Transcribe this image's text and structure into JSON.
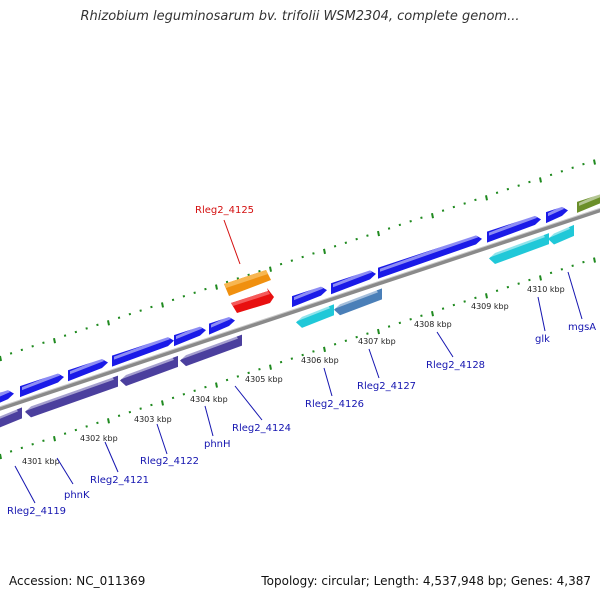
{
  "title": "Rhizobium leguminosarum bv. trifolii WSM2304, complete genom...",
  "footer": {
    "accession": "Accession: NC_011369",
    "summary": "Topology: circular; Length: 4,537,948 bp; Genes: 4,387"
  },
  "colors": {
    "backbone": "#8a8a8a",
    "tick": "#1f8a1f",
    "cds_forward": "#1a1ae8",
    "cds_reverse": "#4b3f9e",
    "highlight_orange": "#f0900f",
    "highlight_red": "#e81010",
    "cyan": "#20c8d8",
    "steelblue": "#4a7fb8",
    "olive": "#6b8f2a",
    "label_blue": "#1515b0",
    "label_red": "#d41010"
  },
  "kbp_ticks": [
    "4301 kbp",
    "4302 kbp",
    "4303 kbp",
    "4304 kbp",
    "4305 kbp",
    "4306 kbp",
    "4307 kbp",
    "4308 kbp",
    "4309 kbp",
    "4310 kbp"
  ],
  "gene_labels": [
    {
      "text": "Rleg2_4125",
      "color": "red"
    },
    {
      "text": "Rleg2_4119",
      "color": "blue"
    },
    {
      "text": "phnK",
      "color": "blue"
    },
    {
      "text": "Rleg2_4121",
      "color": "blue"
    },
    {
      "text": "Rleg2_4122",
      "color": "blue"
    },
    {
      "text": "phnH",
      "color": "blue"
    },
    {
      "text": "Rleg2_4124",
      "color": "blue"
    },
    {
      "text": "Rleg2_4126",
      "color": "blue"
    },
    {
      "text": "Rleg2_4127",
      "color": "blue"
    },
    {
      "text": "Rleg2_4128",
      "color": "blue"
    },
    {
      "text": "glk",
      "color": "blue"
    },
    {
      "text": "mgsA",
      "color": "blue"
    }
  ]
}
